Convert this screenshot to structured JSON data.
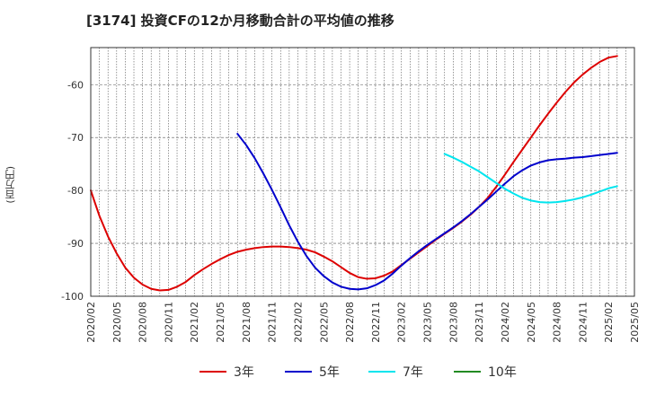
{
  "chart_data": {
    "type": "line",
    "title": "[3174]  投資CFの12か月移動合計の平均値の推移",
    "ylabel": "(百万円)",
    "xlabel": "",
    "ylim": [
      -100,
      -53
    ],
    "yticks": [
      -100,
      -90,
      -80,
      -70,
      -60
    ],
    "xlim": [
      "2020-02",
      "2025-05"
    ],
    "xticks": [
      "2020/02",
      "2020/05",
      "2020/08",
      "2020/11",
      "2021/02",
      "2021/05",
      "2021/08",
      "2021/11",
      "2022/02",
      "2022/05",
      "2022/08",
      "2022/11",
      "2023/02",
      "2023/05",
      "2023/08",
      "2023/11",
      "2024/02",
      "2024/05",
      "2024/08",
      "2024/11",
      "2025/02",
      "2025/05"
    ],
    "grid": true,
    "legend_position": "bottom",
    "series": [
      {
        "name": "3年",
        "color": "#dd0000",
        "points": [
          [
            "2020-02",
            -80.0
          ],
          [
            "2020-03",
            -84.8
          ],
          [
            "2020-04",
            -88.7
          ],
          [
            "2020-05",
            -91.9
          ],
          [
            "2020-06",
            -94.6
          ],
          [
            "2020-07",
            -96.5
          ],
          [
            "2020-08",
            -97.8
          ],
          [
            "2020-09",
            -98.6
          ],
          [
            "2020-10",
            -98.9
          ],
          [
            "2020-11",
            -98.8
          ],
          [
            "2020-12",
            -98.2
          ],
          [
            "2021-01",
            -97.3
          ],
          [
            "2021-02",
            -96.0
          ],
          [
            "2021-03",
            -94.9
          ],
          [
            "2021-04",
            -93.9
          ],
          [
            "2021-05",
            -93.0
          ],
          [
            "2021-06",
            -92.2
          ],
          [
            "2021-07",
            -91.6
          ],
          [
            "2021-08",
            -91.2
          ],
          [
            "2021-09",
            -90.9
          ],
          [
            "2021-10",
            -90.7
          ],
          [
            "2021-11",
            -90.6
          ],
          [
            "2021-12",
            -90.6
          ],
          [
            "2022-01",
            -90.7
          ],
          [
            "2022-02",
            -90.9
          ],
          [
            "2022-03",
            -91.2
          ],
          [
            "2022-04",
            -91.7
          ],
          [
            "2022-05",
            -92.5
          ],
          [
            "2022-06",
            -93.4
          ],
          [
            "2022-07",
            -94.5
          ],
          [
            "2022-08",
            -95.6
          ],
          [
            "2022-09",
            -96.4
          ],
          [
            "2022-10",
            -96.7
          ],
          [
            "2022-11",
            -96.6
          ],
          [
            "2022-12",
            -96.1
          ],
          [
            "2023-01",
            -95.3
          ],
          [
            "2023-02",
            -94.1
          ],
          [
            "2023-03",
            -92.9
          ],
          [
            "2023-04",
            -91.7
          ],
          [
            "2023-05",
            -90.5
          ],
          [
            "2023-06",
            -89.3
          ],
          [
            "2023-07",
            -88.2
          ],
          [
            "2023-08",
            -87.1
          ],
          [
            "2023-09",
            -85.9
          ],
          [
            "2023-10",
            -84.6
          ],
          [
            "2023-11",
            -83.1
          ],
          [
            "2023-12",
            -81.4
          ],
          [
            "2024-01",
            -79.3
          ],
          [
            "2024-02",
            -77.0
          ],
          [
            "2024-03",
            -74.6
          ],
          [
            "2024-04",
            -72.3
          ],
          [
            "2024-05",
            -70.0
          ],
          [
            "2024-06",
            -67.7
          ],
          [
            "2024-07",
            -65.5
          ],
          [
            "2024-08",
            -63.4
          ],
          [
            "2024-09",
            -61.4
          ],
          [
            "2024-10",
            -59.6
          ],
          [
            "2024-11",
            -58.1
          ],
          [
            "2024-12",
            -56.8
          ],
          [
            "2025-01",
            -55.7
          ],
          [
            "2025-02",
            -54.9
          ],
          [
            "2025-03",
            -54.6
          ]
        ]
      },
      {
        "name": "5年",
        "color": "#0000cc",
        "points": [
          [
            "2021-07",
            -69.3
          ],
          [
            "2021-08",
            -71.4
          ],
          [
            "2021-09",
            -73.9
          ],
          [
            "2021-10",
            -76.8
          ],
          [
            "2021-11",
            -79.9
          ],
          [
            "2021-12",
            -83.2
          ],
          [
            "2022-01",
            -86.6
          ],
          [
            "2022-02",
            -89.7
          ],
          [
            "2022-03",
            -92.4
          ],
          [
            "2022-04",
            -94.6
          ],
          [
            "2022-05",
            -96.2
          ],
          [
            "2022-06",
            -97.4
          ],
          [
            "2022-07",
            -98.2
          ],
          [
            "2022-08",
            -98.6
          ],
          [
            "2022-09",
            -98.7
          ],
          [
            "2022-10",
            -98.5
          ],
          [
            "2022-11",
            -97.9
          ],
          [
            "2022-12",
            -97.0
          ],
          [
            "2023-01",
            -95.7
          ],
          [
            "2023-02",
            -94.2
          ],
          [
            "2023-03",
            -92.8
          ],
          [
            "2023-04",
            -91.5
          ],
          [
            "2023-05",
            -90.3
          ],
          [
            "2023-06",
            -89.2
          ],
          [
            "2023-07",
            -88.1
          ],
          [
            "2023-08",
            -87.0
          ],
          [
            "2023-09",
            -85.8
          ],
          [
            "2023-10",
            -84.5
          ],
          [
            "2023-11",
            -83.1
          ],
          [
            "2023-12",
            -81.7
          ],
          [
            "2024-01",
            -80.2
          ],
          [
            "2024-02",
            -78.7
          ],
          [
            "2024-03",
            -77.3
          ],
          [
            "2024-04",
            -76.2
          ],
          [
            "2024-05",
            -75.3
          ],
          [
            "2024-06",
            -74.7
          ],
          [
            "2024-07",
            -74.3
          ],
          [
            "2024-08",
            -74.1
          ],
          [
            "2024-09",
            -74.0
          ],
          [
            "2024-10",
            -73.8
          ],
          [
            "2024-11",
            -73.7
          ],
          [
            "2024-12",
            -73.5
          ],
          [
            "2025-01",
            -73.3
          ],
          [
            "2025-02",
            -73.1
          ],
          [
            "2025-03",
            -72.9
          ]
        ]
      },
      {
        "name": "7年",
        "color": "#00e5ee",
        "points": [
          [
            "2023-07",
            -73.1
          ],
          [
            "2023-08",
            -73.8
          ],
          [
            "2023-09",
            -74.6
          ],
          [
            "2023-10",
            -75.5
          ],
          [
            "2023-11",
            -76.4
          ],
          [
            "2023-12",
            -77.5
          ],
          [
            "2024-01",
            -78.6
          ],
          [
            "2024-02",
            -79.7
          ],
          [
            "2024-03",
            -80.6
          ],
          [
            "2024-04",
            -81.4
          ],
          [
            "2024-05",
            -81.9
          ],
          [
            "2024-06",
            -82.2
          ],
          [
            "2024-07",
            -82.3
          ],
          [
            "2024-08",
            -82.2
          ],
          [
            "2024-09",
            -82.0
          ],
          [
            "2024-10",
            -81.7
          ],
          [
            "2024-11",
            -81.3
          ],
          [
            "2024-12",
            -80.8
          ],
          [
            "2025-01",
            -80.2
          ],
          [
            "2025-02",
            -79.6
          ],
          [
            "2025-03",
            -79.2
          ]
        ]
      },
      {
        "name": "10年",
        "color": "#228b22",
        "points": []
      }
    ]
  }
}
